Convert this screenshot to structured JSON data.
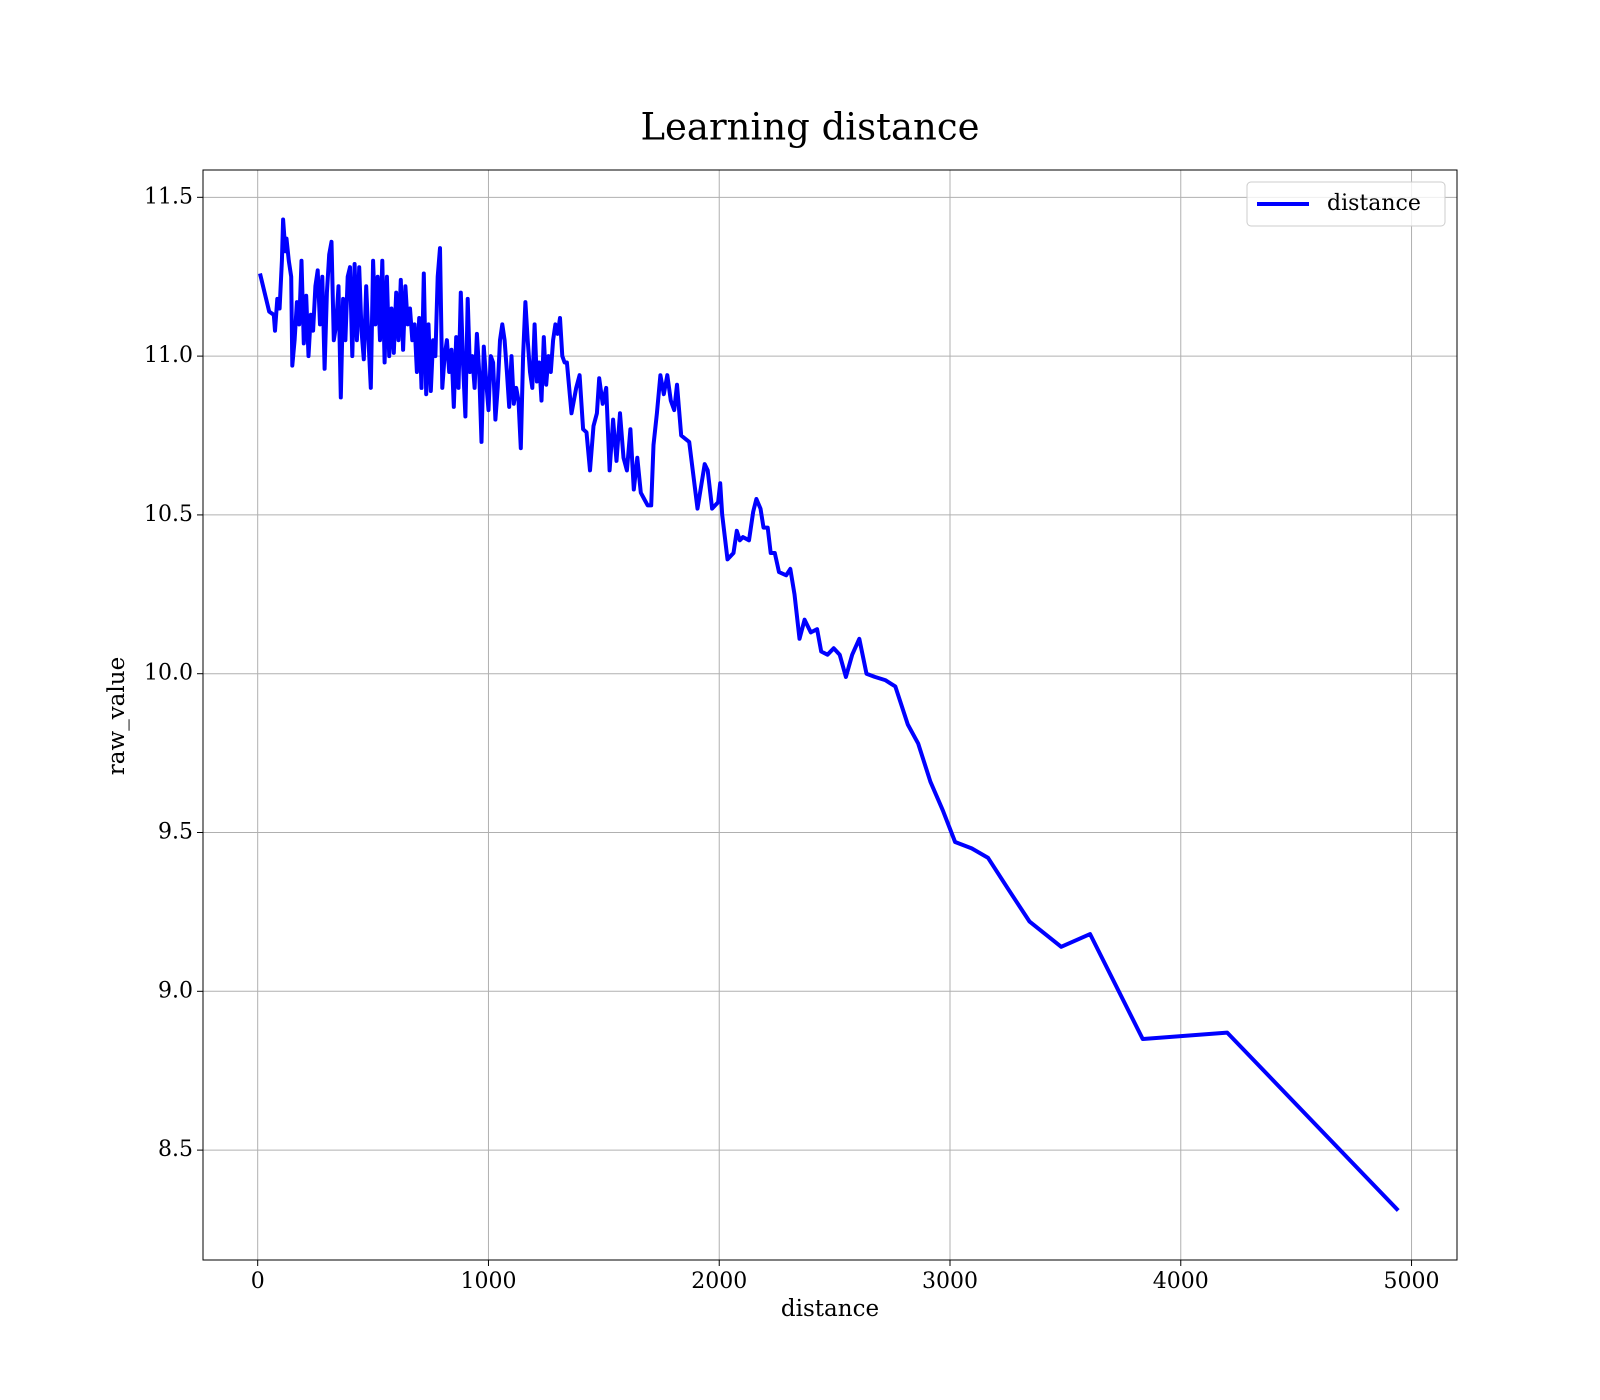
{
  "chart_data": {
    "type": "line",
    "title": "Learning distance",
    "xlabel": "distance",
    "ylabel": "raw_value",
    "x": [
      10,
      30,
      50,
      70,
      75,
      85,
      95,
      105,
      110,
      120,
      125,
      135,
      145,
      150,
      160,
      170,
      180,
      190,
      200,
      210,
      220,
      230,
      240,
      250,
      260,
      270,
      280,
      290,
      300,
      310,
      320,
      330,
      340,
      350,
      360,
      370,
      380,
      390,
      400,
      410,
      420,
      430,
      440,
      450,
      460,
      470,
      480,
      490,
      500,
      510,
      520,
      530,
      540,
      550,
      560,
      570,
      580,
      590,
      600,
      610,
      620,
      630,
      640,
      650,
      660,
      670,
      680,
      690,
      700,
      710,
      720,
      730,
      740,
      750,
      760,
      770,
      780,
      790,
      800,
      810,
      820,
      830,
      840,
      850,
      860,
      870,
      880,
      890,
      900,
      910,
      920,
      930,
      940,
      950,
      960,
      970,
      980,
      990,
      1000,
      1010,
      1020,
      1030,
      1040,
      1050,
      1060,
      1070,
      1080,
      1090,
      1100,
      1110,
      1120,
      1130,
      1140,
      1150,
      1160,
      1170,
      1180,
      1190,
      1200,
      1210,
      1220,
      1230,
      1240,
      1250,
      1260,
      1270,
      1280,
      1290,
      1300,
      1310,
      1320,
      1330,
      1340,
      1360,
      1380,
      1395,
      1410,
      1425,
      1440,
      1455,
      1470,
      1480,
      1495,
      1510,
      1525,
      1540,
      1555,
      1570,
      1585,
      1600,
      1615,
      1630,
      1645,
      1660,
      1675,
      1690,
      1705,
      1715,
      1730,
      1745,
      1760,
      1775,
      1790,
      1805,
      1817,
      1835,
      1870,
      1906,
      1937,
      1950,
      1969,
      1995,
      2004,
      2013,
      2036,
      2062,
      2076,
      2089,
      2103,
      2129,
      2147,
      2161,
      2179,
      2192,
      2210,
      2223,
      2241,
      2259,
      2290,
      2308,
      2326,
      2348,
      2370,
      2397,
      2424,
      2442,
      2469,
      2496,
      2522,
      2549,
      2576,
      2607,
      2638,
      2674,
      2719,
      2763,
      2817,
      2862,
      2915,
      2969,
      3022,
      3094,
      3165,
      3254,
      3344,
      3482,
      3607,
      3835,
      4201,
      4942
    ],
    "series": [
      {
        "name": "distance",
        "color": "#0000ff",
        "values": [
          11.26,
          11.2,
          11.14,
          11.13,
          11.08,
          11.18,
          11.15,
          11.3,
          11.43,
          11.33,
          11.37,
          11.3,
          11.25,
          10.97,
          11.05,
          11.17,
          11.1,
          11.3,
          11.04,
          11.19,
          11.0,
          11.13,
          11.08,
          11.22,
          11.27,
          11.1,
          11.25,
          10.96,
          11.2,
          11.32,
          11.36,
          11.05,
          11.1,
          11.22,
          10.87,
          11.18,
          11.05,
          11.25,
          11.28,
          11.0,
          11.29,
          11.05,
          11.28,
          11.08,
          10.99,
          11.22,
          11.05,
          10.9,
          11.3,
          11.1,
          11.25,
          11.05,
          11.3,
          10.98,
          11.25,
          11.0,
          11.15,
          11.01,
          11.2,
          11.05,
          11.24,
          11.02,
          11.22,
          11.1,
          11.15,
          11.05,
          11.1,
          10.95,
          11.12,
          10.9,
          11.26,
          10.88,
          11.1,
          10.89,
          11.05,
          11.0,
          11.25,
          11.34,
          10.9,
          11.0,
          11.05,
          10.95,
          11.02,
          10.84,
          11.06,
          10.9,
          11.2,
          10.97,
          10.81,
          11.18,
          10.95,
          11.0,
          10.9,
          11.07,
          10.95,
          10.73,
          11.03,
          10.92,
          10.83,
          11.0,
          10.98,
          10.8,
          10.9,
          11.05,
          11.1,
          11.05,
          10.95,
          10.84,
          11.0,
          10.85,
          10.9,
          10.86,
          10.71,
          11.0,
          11.17,
          11.05,
          10.95,
          10.9,
          11.1,
          10.92,
          10.98,
          10.86,
          11.06,
          10.91,
          11.0,
          10.95,
          11.05,
          11.1,
          11.07,
          11.12,
          11.0,
          10.98,
          10.98,
          10.82,
          10.9,
          10.94,
          10.77,
          10.76,
          10.64,
          10.78,
          10.82,
          10.93,
          10.85,
          10.9,
          10.64,
          10.8,
          10.67,
          10.82,
          10.68,
          10.64,
          10.77,
          10.58,
          10.68,
          10.57,
          10.55,
          10.53,
          10.53,
          10.72,
          10.82,
          10.94,
          10.88,
          10.94,
          10.86,
          10.83,
          10.91,
          10.75,
          10.73,
          10.52,
          10.66,
          10.64,
          10.52,
          10.54,
          10.6,
          10.5,
          10.36,
          10.38,
          10.45,
          10.42,
          10.43,
          10.42,
          10.51,
          10.55,
          10.52,
          10.46,
          10.46,
          10.38,
          10.38,
          10.32,
          10.31,
          10.33,
          10.25,
          10.11,
          10.17,
          10.13,
          10.14,
          10.07,
          10.06,
          10.08,
          10.06,
          9.99,
          10.06,
          10.11,
          10.0,
          9.99,
          9.98,
          9.96,
          9.84,
          9.78,
          9.66,
          9.57,
          9.47,
          9.45,
          9.42,
          9.32,
          9.22,
          9.14,
          9.18,
          8.85,
          8.87,
          8.31
        ]
      }
    ],
    "xlim": [
      -237,
      5197
    ],
    "ylim": [
      8.154,
      11.586
    ],
    "xticks": [
      0,
      1000,
      2000,
      3000,
      4000,
      5000
    ],
    "yticks": [
      8.5,
      {
        "value": 9,
        "label": "9.0"
      },
      9.5,
      {
        "value": 10,
        "label": "10.0"
      },
      10.5,
      {
        "value": 11,
        "label": "11.0"
      },
      11.5
    ],
    "grid": true,
    "legend": "upper right"
  }
}
